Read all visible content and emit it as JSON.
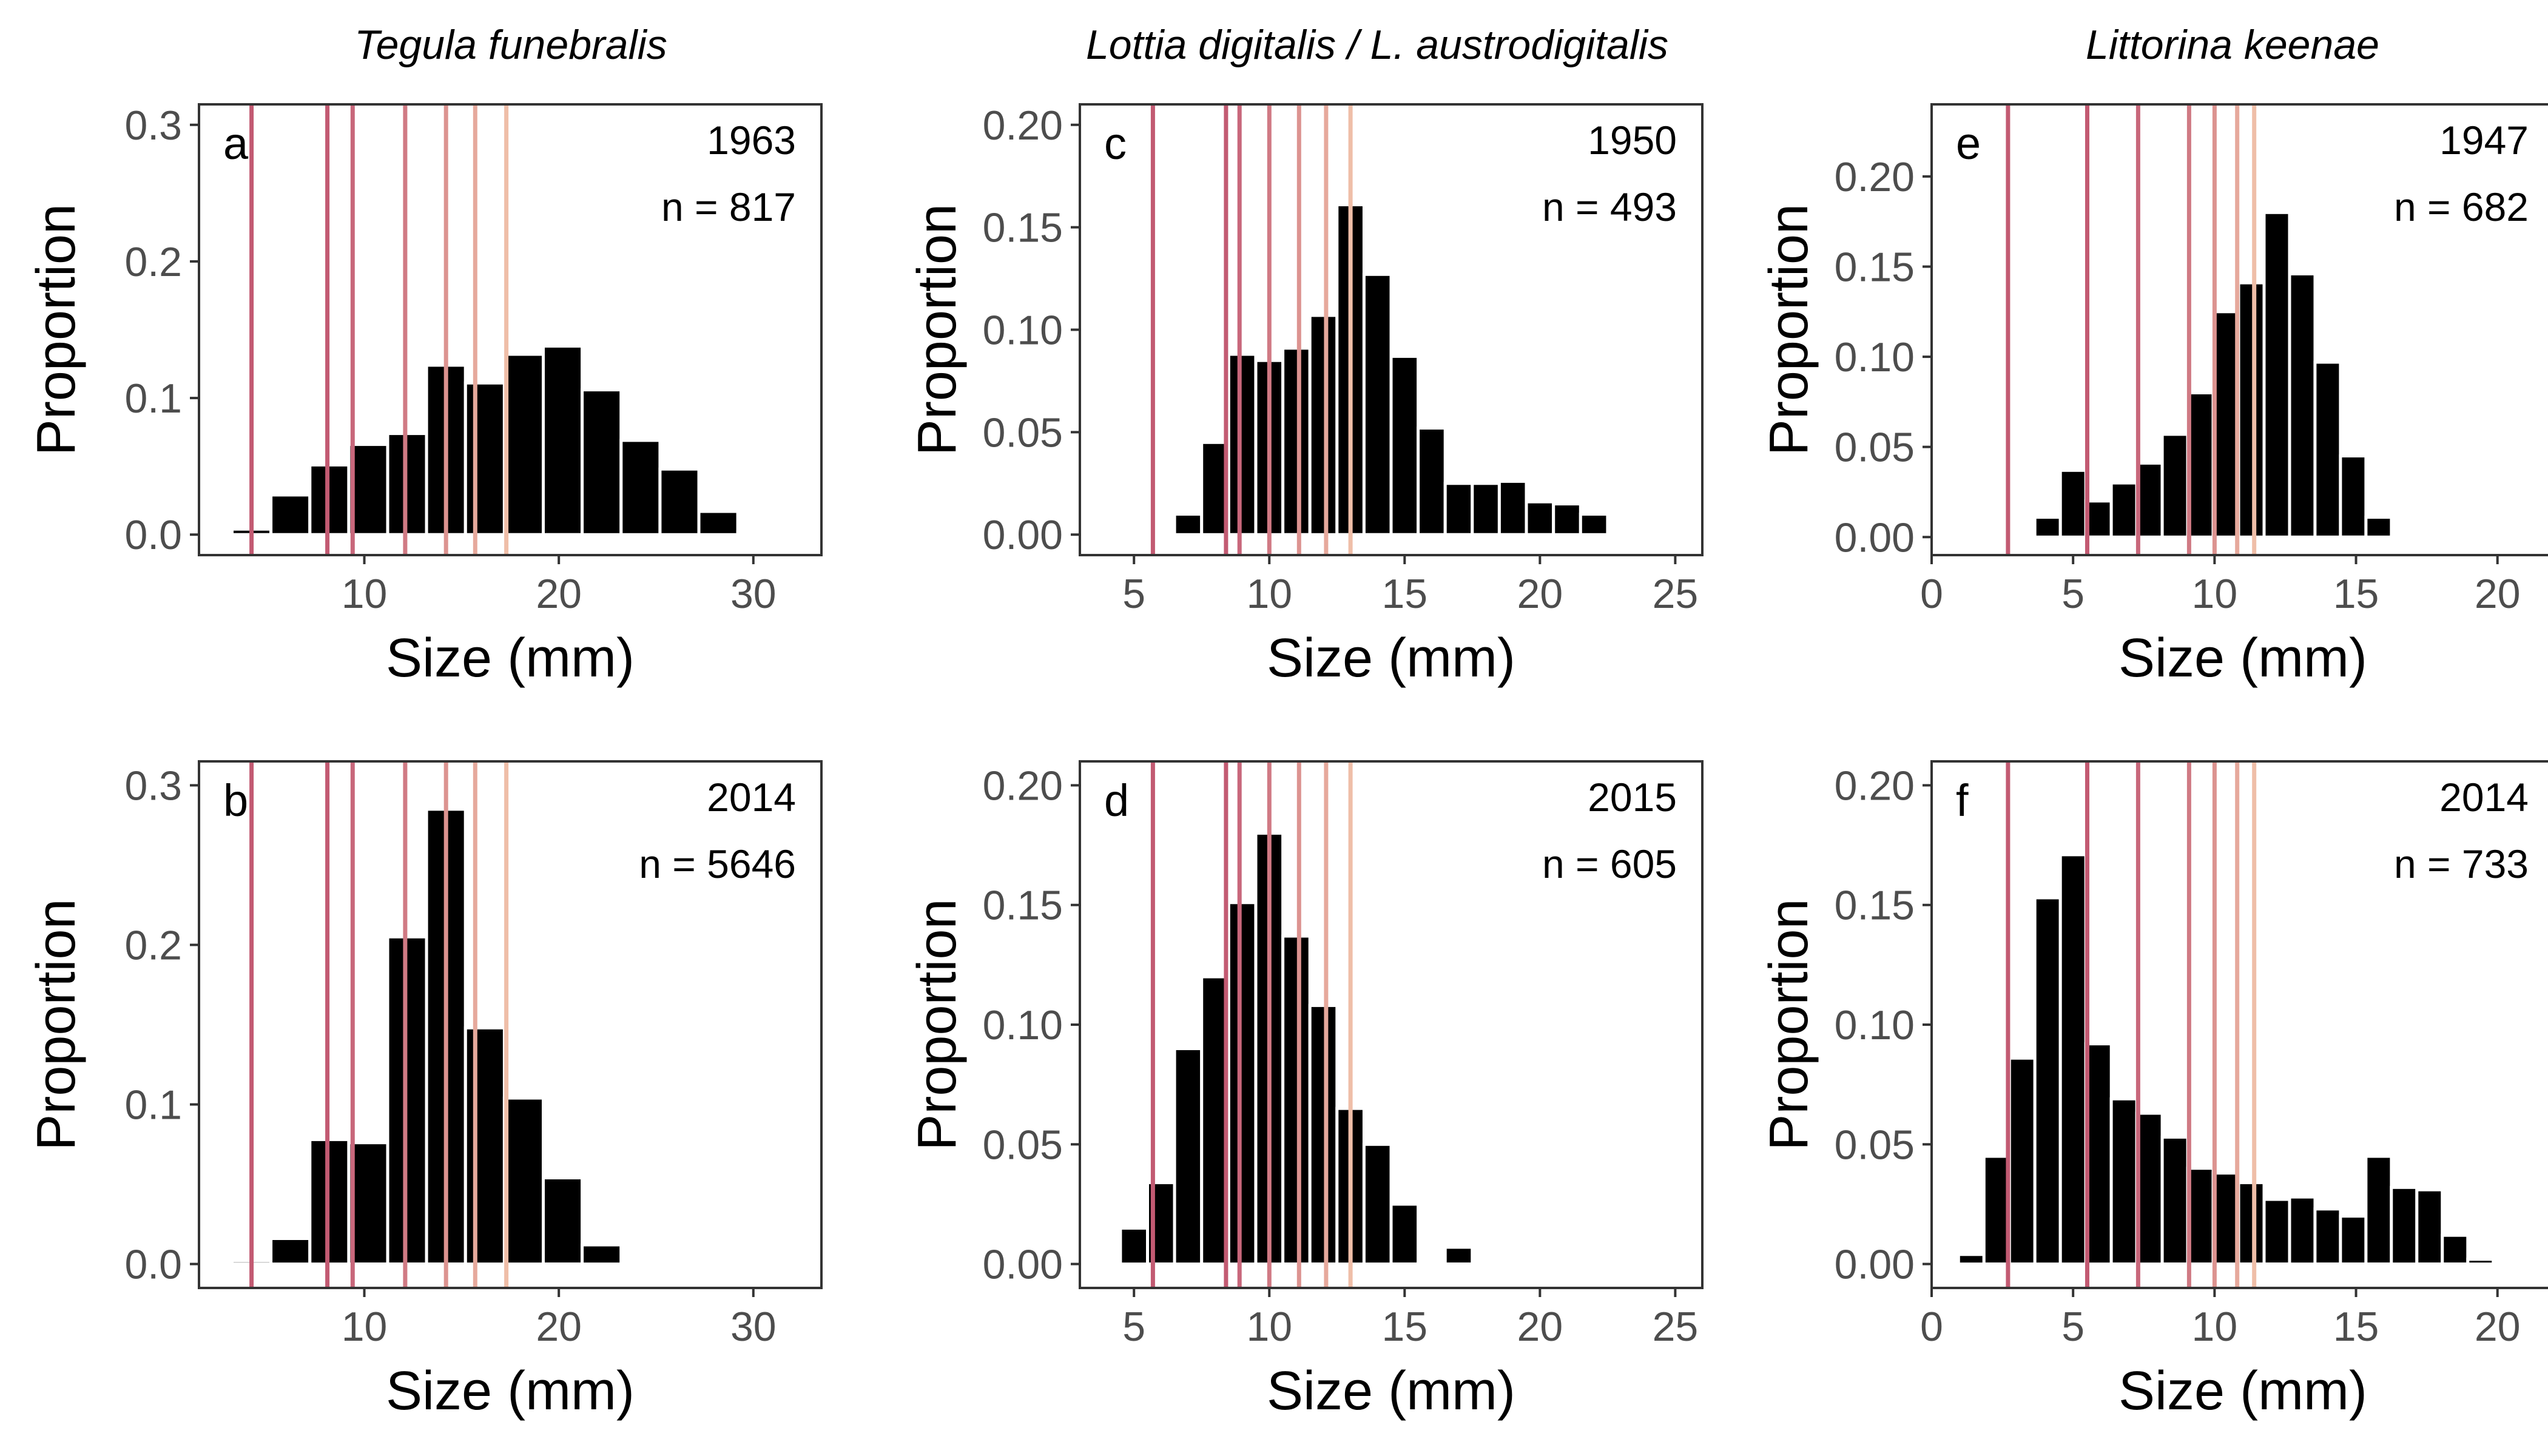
{
  "chart_data": {
    "type": "bar",
    "column_titles": [
      "Tegula funebralis",
      "Lottia digitalis / L. austrodigitalis",
      "Littorina keenae"
    ],
    "xlabel": "Size (mm)",
    "ylabel": "Proportion",
    "line_colors": [
      "#c25a72",
      "#c8677b",
      "#d07a84",
      "#dc9390",
      "#e6a99c",
      "#efbea8"
    ],
    "bar_color": "#000000",
    "panels": [
      {
        "letter": "a",
        "year": "1963",
        "n_label": "n = 817",
        "species": "Tegula funebralis",
        "xlim": [
          1.5,
          33.5
        ],
        "ylim": [
          -0.015,
          0.315
        ],
        "xticks": [
          10,
          20,
          30
        ],
        "yticks": [
          0,
          0.1,
          0.2,
          0.3
        ],
        "ytick_labels": [
          "0.0",
          "0.1",
          "0.2",
          "0.3"
        ],
        "bin_width": 2.0,
        "x": [
          4.2,
          6.2,
          8.2,
          10.2,
          12.2,
          14.2,
          16.2,
          18.2,
          20.2,
          22.2,
          24.2,
          26.2,
          28.2,
          30.2
        ],
        "values": [
          0.004,
          0.029,
          0.051,
          0.066,
          0.074,
          0.124,
          0.111,
          0.132,
          0.138,
          0.106,
          0.069,
          0.048,
          0.017,
          0.002
        ],
        "vlines": [
          4.2,
          8.1,
          9.4,
          12.1,
          14.2,
          15.7,
          17.3
        ]
      },
      {
        "letter": "c",
        "year": "1950",
        "n_label": "n = 493",
        "species": "Lottia digitalis / L. austrodigitalis",
        "xlim": [
          3,
          26
        ],
        "ylim": [
          -0.01,
          0.21
        ],
        "xticks": [
          5,
          10,
          15,
          20,
          25
        ],
        "yticks": [
          0,
          0.05,
          0.1,
          0.15,
          0.2
        ],
        "ytick_labels": [
          "0.00",
          "0.05",
          "0.10",
          "0.15",
          "0.20"
        ],
        "bin_width": 1.0,
        "x": [
          6,
          7,
          8,
          9,
          10,
          11,
          12,
          13,
          14,
          15,
          16,
          17,
          18,
          19,
          20,
          21,
          22
        ],
        "values": [
          0.0,
          0.01,
          0.045,
          0.088,
          0.085,
          0.091,
          0.107,
          0.161,
          0.127,
          0.087,
          0.052,
          0.025,
          0.025,
          0.026,
          0.016,
          0.015,
          0.01
        ],
        "vlines": [
          5.7,
          8.4,
          8.9,
          10.0,
          11.1,
          12.1,
          13.0
        ]
      },
      {
        "letter": "e",
        "year": "1947",
        "n_label": "n = 682",
        "species": "Littorina keenae",
        "xlim": [
          0,
          22
        ],
        "ylim": [
          -0.01,
          0.24
        ],
        "xticks": [
          0,
          5,
          10,
          15,
          20
        ],
        "yticks": [
          0,
          0.05,
          0.1,
          0.15,
          0.2
        ],
        "ytick_labels": [
          "0.00",
          "0.05",
          "0.10",
          "0.15",
          "0.20"
        ],
        "bin_width": 0.9,
        "x": [
          3.2,
          4.1,
          5.0,
          5.9,
          6.8,
          7.7,
          8.6,
          9.5,
          10.4,
          11.3,
          12.2,
          13.1,
          14.0,
          14.9,
          15.8
        ],
        "values": [
          0.0,
          0.011,
          0.037,
          0.02,
          0.03,
          0.041,
          0.057,
          0.08,
          0.125,
          0.141,
          0.18,
          0.146,
          0.097,
          0.045,
          0.011
        ],
        "vlines": [
          2.7,
          5.5,
          7.3,
          9.1,
          10.0,
          10.8,
          11.4
        ]
      },
      {
        "letter": "b",
        "year": "2014",
        "n_label": "n = 5646",
        "species": "Tegula funebralis",
        "xlim": [
          1.5,
          33.5
        ],
        "ylim": [
          -0.015,
          0.315
        ],
        "xticks": [
          10,
          20,
          30
        ],
        "yticks": [
          0,
          0.1,
          0.2,
          0.3
        ],
        "ytick_labels": [
          "0.0",
          "0.1",
          "0.2",
          "0.3"
        ],
        "bin_width": 2.0,
        "x": [
          4.2,
          6.2,
          8.2,
          10.2,
          12.2,
          14.2,
          16.2,
          18.2,
          20.2,
          22.2
        ],
        "values": [
          0.002,
          0.016,
          0.078,
          0.076,
          0.205,
          0.285,
          0.148,
          0.104,
          0.054,
          0.012
        ],
        "vlines": [
          4.2,
          8.1,
          9.4,
          12.1,
          14.2,
          15.7,
          17.3
        ]
      },
      {
        "letter": "d",
        "year": "2015",
        "n_label": "n = 605",
        "species": "Lottia digitalis / L. austrodigitalis",
        "xlim": [
          3,
          26
        ],
        "ylim": [
          -0.01,
          0.21
        ],
        "xticks": [
          5,
          10,
          15,
          20,
          25
        ],
        "yticks": [
          0,
          0.05,
          0.1,
          0.15,
          0.2
        ],
        "ytick_labels": [
          "0.00",
          "0.05",
          "0.10",
          "0.15",
          "0.20"
        ],
        "bin_width": 1.0,
        "x": [
          5,
          6,
          7,
          8,
          9,
          10,
          11,
          12,
          13,
          14,
          15,
          16,
          17
        ],
        "values": [
          0.015,
          0.034,
          0.09,
          0.12,
          0.151,
          0.18,
          0.137,
          0.108,
          0.065,
          0.05,
          0.025,
          0.0,
          0.007
        ],
        "vlines": [
          5.7,
          8.4,
          8.9,
          10.0,
          11.1,
          12.1,
          13.0
        ]
      },
      {
        "letter": "f",
        "year": "2014",
        "n_label": "n = 733",
        "species": "Littorina keenae",
        "xlim": [
          0,
          22
        ],
        "ylim": [
          -0.01,
          0.21
        ],
        "xticks": [
          0,
          5,
          10,
          15,
          20
        ],
        "yticks": [
          0,
          0.05,
          0.1,
          0.15,
          0.2
        ],
        "ytick_labels": [
          "0.00",
          "0.05",
          "0.10",
          "0.15",
          "0.20"
        ],
        "bin_width": 0.9,
        "x": [
          1.4,
          2.3,
          3.2,
          4.1,
          5.0,
          5.9,
          6.8,
          7.7,
          8.6,
          9.5,
          10.4,
          11.3,
          12.2,
          13.1,
          14.0,
          14.9,
          15.8,
          16.7,
          17.6,
          18.5,
          19.4
        ],
        "values": [
          0.004,
          0.045,
          0.086,
          0.153,
          0.171,
          0.092,
          0.069,
          0.063,
          0.053,
          0.04,
          0.038,
          0.034,
          0.027,
          0.028,
          0.023,
          0.02,
          0.045,
          0.032,
          0.031,
          0.012,
          0.002
        ],
        "vlines": [
          2.7,
          5.5,
          7.3,
          9.1,
          10.0,
          10.8,
          11.4
        ]
      }
    ]
  }
}
